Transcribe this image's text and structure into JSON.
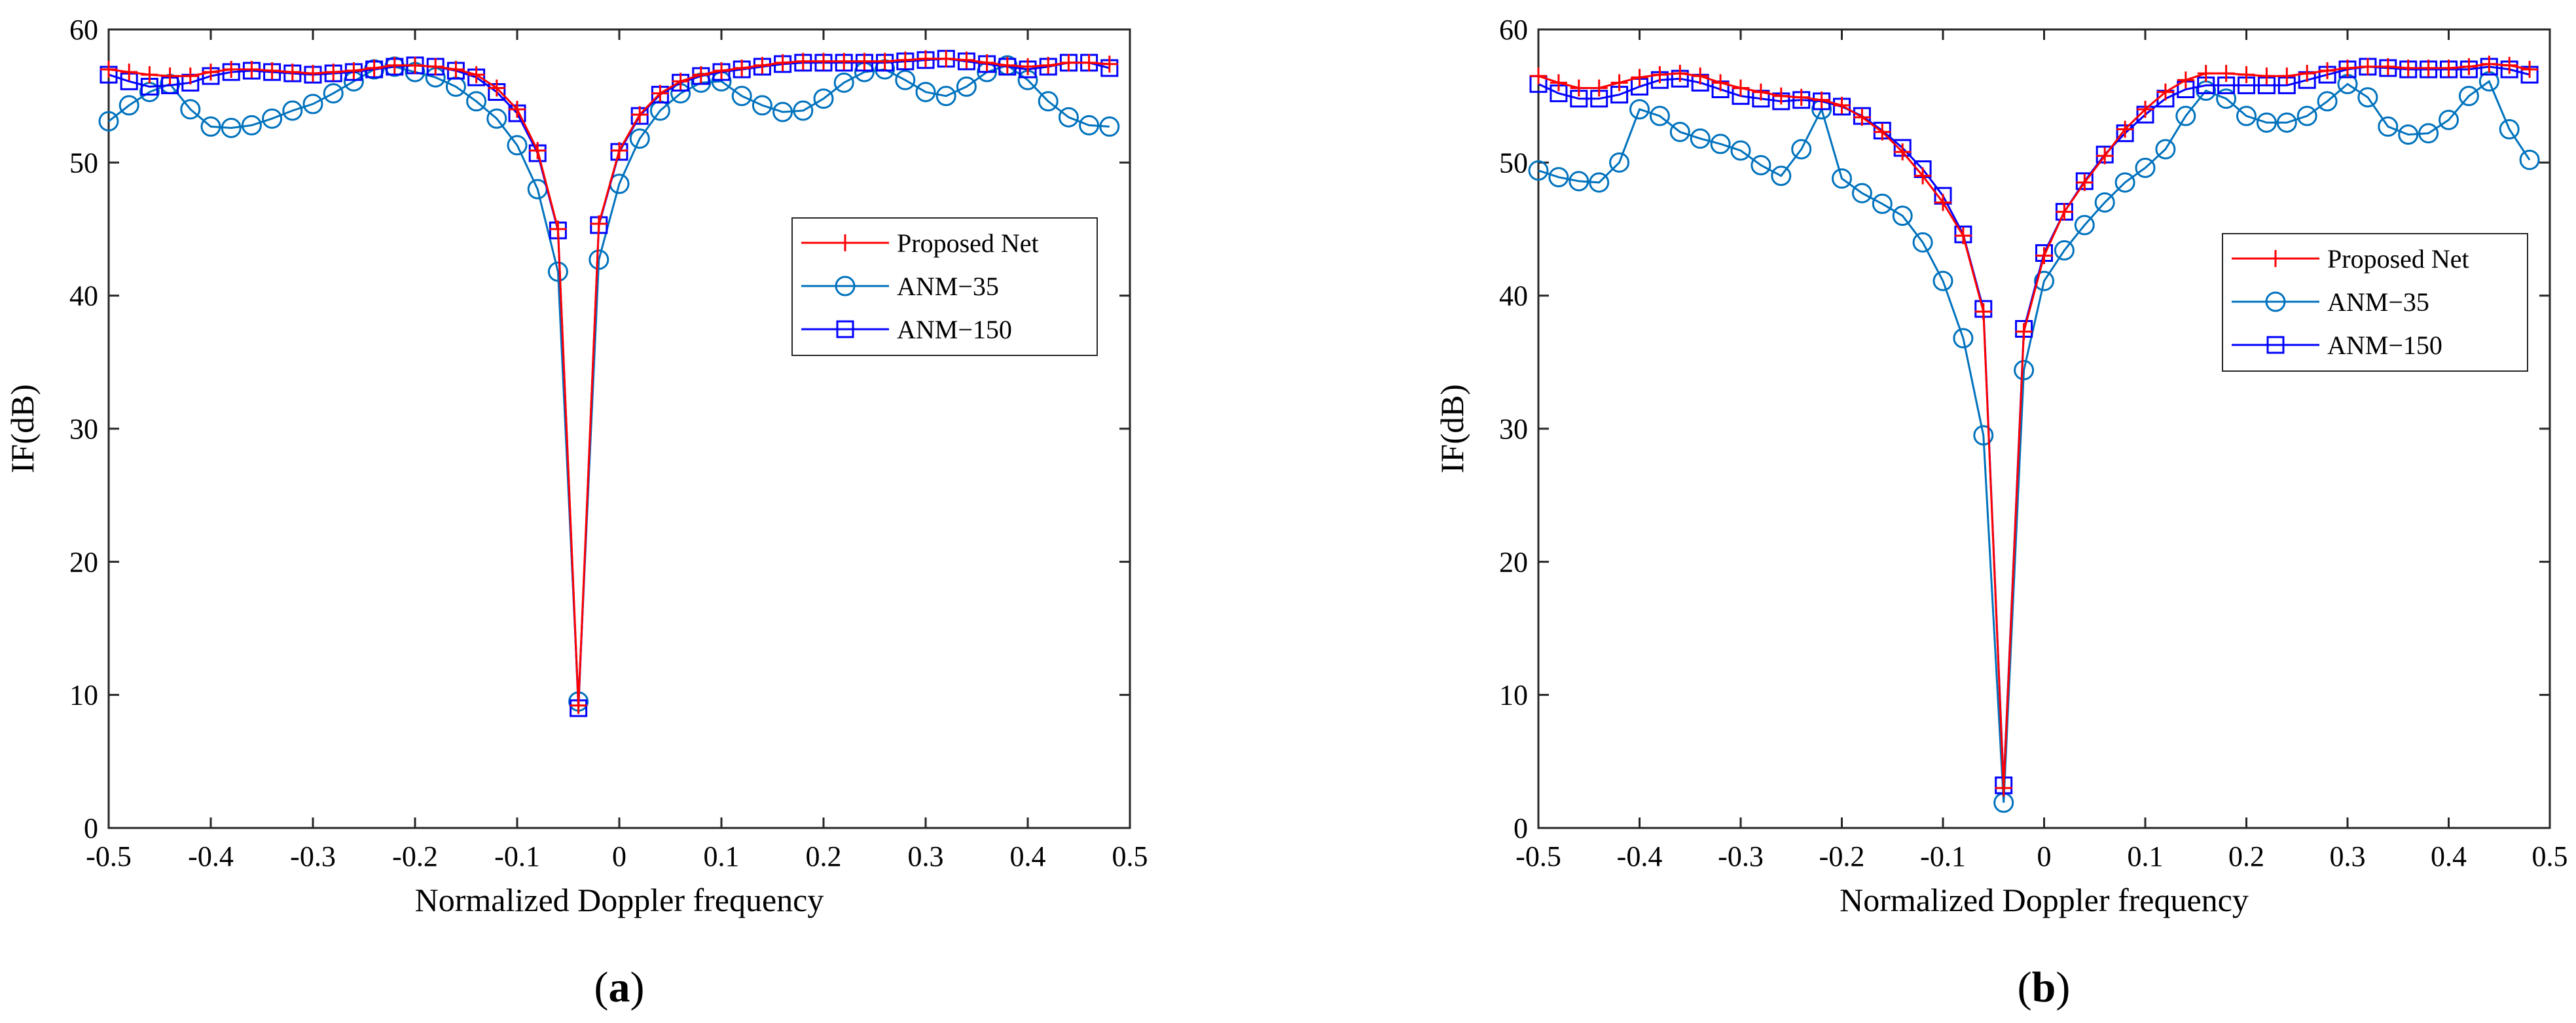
{
  "chart_data": [
    {
      "type": "line",
      "panel_label": "a",
      "xlabel": "Normalized Doppler frequency",
      "ylabel": "IF(dB)",
      "xlim": [
        -0.5,
        0.5
      ],
      "ylim": [
        0,
        60
      ],
      "xticks": [
        -0.5,
        -0.4,
        -0.3,
        -0.2,
        -0.1,
        0,
        0.1,
        0.2,
        0.3,
        0.4,
        0.5
      ],
      "xtick_labels": [
        "-0.5",
        "-0.4",
        "-0.3",
        "-0.2",
        "-0.1",
        "0",
        "0.1",
        "0.2",
        "0.3",
        "0.4",
        "0.5"
      ],
      "yticks": [
        0,
        10,
        20,
        30,
        40,
        50,
        60
      ],
      "ytick_labels": [
        "0",
        "10",
        "20",
        "30",
        "40",
        "50",
        "60"
      ],
      "grid": false,
      "legend_position": "right",
      "x": [
        -0.5,
        -0.48,
        -0.46,
        -0.44,
        -0.42,
        -0.4,
        -0.38,
        -0.36,
        -0.34,
        -0.32,
        -0.3,
        -0.28,
        -0.26,
        -0.24,
        -0.22,
        -0.2,
        -0.18,
        -0.16,
        -0.14,
        -0.12,
        -0.1,
        -0.08,
        -0.06,
        -0.04,
        -0.02,
        0,
        0.02,
        0.04,
        0.06,
        0.08,
        0.1,
        0.12,
        0.14,
        0.16,
        0.18,
        0.2,
        0.22,
        0.24,
        0.26,
        0.28,
        0.3,
        0.32,
        0.34,
        0.36,
        0.38,
        0.4,
        0.42,
        0.44,
        0.46,
        0.48
      ],
      "series": [
        {
          "name": "Proposed Net",
          "color": "#ff0000",
          "marker": "plus",
          "values": [
            57.0,
            56.8,
            56.6,
            56.5,
            56.5,
            56.8,
            57.0,
            57.0,
            56.9,
            56.8,
            56.7,
            56.8,
            56.9,
            57.1,
            57.3,
            57.3,
            57.2,
            57.0,
            56.6,
            55.6,
            54.0,
            50.9,
            45.0,
            9.2,
            45.4,
            50.9,
            53.6,
            55.2,
            56.1,
            56.6,
            56.9,
            57.1,
            57.3,
            57.5,
            57.6,
            57.6,
            57.6,
            57.6,
            57.6,
            57.7,
            57.8,
            57.8,
            57.7,
            57.5,
            57.3,
            57.2,
            57.3,
            57.5,
            57.5,
            57.4
          ]
        },
        {
          "name": "ANM−35",
          "color": "#0072bd",
          "marker": "circle",
          "values": [
            53.1,
            54.3,
            55.3,
            55.9,
            54.0,
            52.7,
            52.6,
            52.8,
            53.3,
            53.9,
            54.4,
            55.2,
            56.1,
            57.0,
            57.2,
            56.8,
            56.4,
            55.7,
            54.6,
            53.3,
            51.3,
            48.0,
            41.8,
            9.5,
            42.7,
            48.4,
            51.8,
            53.9,
            55.2,
            56.0,
            56.1,
            55.0,
            54.3,
            53.8,
            53.9,
            54.8,
            56.0,
            56.8,
            57.0,
            56.2,
            55.3,
            55.0,
            55.7,
            56.8,
            57.3,
            56.2,
            54.6,
            53.4,
            52.8,
            52.7
          ]
        },
        {
          "name": "ANM−150",
          "color": "#0000ff",
          "marker": "square",
          "values": [
            56.6,
            56.1,
            55.7,
            55.8,
            56.0,
            56.5,
            56.8,
            56.9,
            56.8,
            56.7,
            56.6,
            56.7,
            56.8,
            57.0,
            57.2,
            57.3,
            57.2,
            56.9,
            56.4,
            55.3,
            53.7,
            50.7,
            44.9,
            9.0,
            45.3,
            50.8,
            53.5,
            55.1,
            56.0,
            56.5,
            56.8,
            57.0,
            57.2,
            57.4,
            57.5,
            57.5,
            57.5,
            57.5,
            57.5,
            57.6,
            57.7,
            57.8,
            57.6,
            57.4,
            57.2,
            57.0,
            57.2,
            57.5,
            57.5,
            57.1
          ]
        }
      ]
    },
    {
      "type": "line",
      "panel_label": "b",
      "xlabel": "Normalized Doppler frequency",
      "ylabel": "IF(dB)",
      "xlim": [
        -0.5,
        0.5
      ],
      "ylim": [
        0,
        60
      ],
      "xticks": [
        -0.5,
        -0.4,
        -0.3,
        -0.2,
        -0.1,
        0,
        0.1,
        0.2,
        0.3,
        0.4,
        0.5
      ],
      "xtick_labels": [
        "-0.5",
        "-0.4",
        "-0.3",
        "-0.2",
        "-0.1",
        "0",
        "0.1",
        "0.2",
        "0.3",
        "0.4",
        "0.5"
      ],
      "yticks": [
        0,
        10,
        20,
        30,
        40,
        50,
        60
      ],
      "ytick_labels": [
        "0",
        "10",
        "20",
        "30",
        "40",
        "50",
        "60"
      ],
      "grid": false,
      "legend_position": "right",
      "x": [
        -0.5,
        -0.48,
        -0.46,
        -0.44,
        -0.42,
        -0.4,
        -0.38,
        -0.36,
        -0.34,
        -0.32,
        -0.3,
        -0.28,
        -0.26,
        -0.24,
        -0.22,
        -0.2,
        -0.18,
        -0.16,
        -0.14,
        -0.12,
        -0.1,
        -0.08,
        -0.06,
        -0.04,
        -0.02,
        0,
        0.02,
        0.04,
        0.06,
        0.08,
        0.1,
        0.12,
        0.14,
        0.16,
        0.18,
        0.2,
        0.22,
        0.24,
        0.26,
        0.28,
        0.3,
        0.32,
        0.34,
        0.36,
        0.38,
        0.4,
        0.42,
        0.44,
        0.46,
        0.48
      ],
      "series": [
        {
          "name": "Proposed Net",
          "color": "#ff0000",
          "marker": "plus",
          "values": [
            56.5,
            56.0,
            55.6,
            55.6,
            56.0,
            56.4,
            56.6,
            56.7,
            56.5,
            56.0,
            55.6,
            55.3,
            55.0,
            54.9,
            54.7,
            54.3,
            53.4,
            52.3,
            50.8,
            49.0,
            47.0,
            44.5,
            38.8,
            3.0,
            37.3,
            43.0,
            46.3,
            48.5,
            50.5,
            52.5,
            54.0,
            55.3,
            56.2,
            56.7,
            56.7,
            56.6,
            56.5,
            56.5,
            56.7,
            56.9,
            57.1,
            57.2,
            57.2,
            57.1,
            57.1,
            57.1,
            57.2,
            57.4,
            57.3,
            57.0
          ]
        },
        {
          "name": "ANM−35",
          "color": "#0072bd",
          "marker": "circle",
          "values": [
            49.4,
            48.9,
            48.6,
            48.5,
            50.0,
            54.0,
            53.5,
            52.3,
            51.8,
            51.4,
            50.9,
            49.8,
            49.0,
            51.0,
            54.0,
            48.8,
            47.7,
            46.9,
            46.0,
            44.0,
            41.1,
            36.8,
            29.5,
            1.9,
            34.4,
            41.1,
            43.4,
            45.3,
            47.0,
            48.5,
            49.6,
            51.0,
            53.5,
            55.4,
            54.8,
            53.5,
            53.0,
            53.0,
            53.5,
            54.6,
            55.9,
            54.9,
            52.7,
            52.1,
            52.2,
            53.2,
            55.0,
            56.1,
            52.5,
            50.2
          ]
        },
        {
          "name": "ANM−150",
          "color": "#0000ff",
          "marker": "square",
          "values": [
            55.9,
            55.2,
            54.8,
            54.8,
            55.1,
            55.7,
            56.2,
            56.3,
            56.0,
            55.5,
            55.0,
            54.8,
            54.6,
            54.7,
            54.6,
            54.2,
            53.5,
            52.4,
            51.1,
            49.5,
            47.5,
            44.6,
            39.0,
            3.2,
            37.5,
            43.2,
            46.3,
            48.6,
            50.6,
            52.2,
            53.6,
            54.8,
            55.5,
            55.8,
            55.8,
            55.8,
            55.8,
            55.8,
            56.2,
            56.6,
            57.0,
            57.2,
            57.1,
            57.0,
            57.0,
            57.0,
            57.0,
            57.2,
            57.0,
            56.6
          ]
        }
      ]
    }
  ]
}
